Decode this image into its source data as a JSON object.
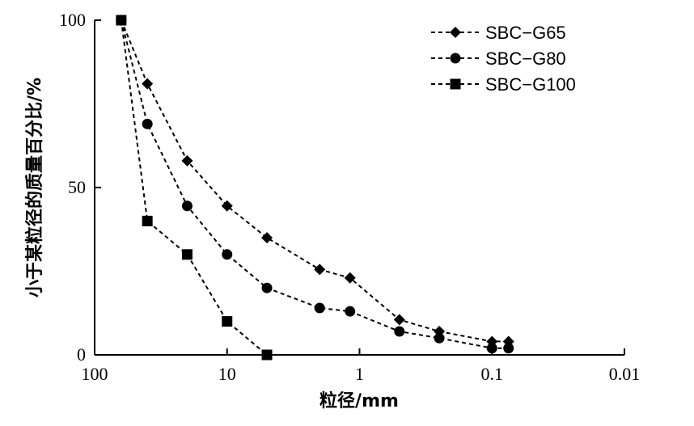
{
  "chart_data": {
    "type": "line",
    "x_scale": "log",
    "x_reversed": true,
    "xlabel": "粒径/mm",
    "ylabel": "小于某粒径的质量百分比/%",
    "xlim": [
      100,
      0.01
    ],
    "ylim": [
      0,
      100
    ],
    "x_ticks": [
      100,
      10,
      1,
      0.1,
      0.01
    ],
    "x_tick_labels": [
      "100",
      "10",
      "1",
      "0.1",
      "0.01"
    ],
    "y_ticks": [
      0,
      50,
      100
    ],
    "y_tick_labels": [
      "0",
      "50",
      "100"
    ],
    "legend_position": "top-right",
    "grid": false,
    "series": [
      {
        "name": "SBC−G65",
        "marker": "diamond",
        "color": "#000000",
        "x": [
          63,
          40,
          20,
          10,
          5,
          2,
          1.18,
          0.5,
          0.25,
          0.1,
          0.075
        ],
        "y": [
          100,
          81,
          58,
          44.5,
          35,
          25.5,
          23,
          10.5,
          7,
          4,
          4
        ]
      },
      {
        "name": "SBC−G80",
        "marker": "circle",
        "color": "#000000",
        "x": [
          63,
          40,
          20,
          10,
          5,
          2,
          1.18,
          0.5,
          0.25,
          0.1,
          0.075
        ],
        "y": [
          100,
          69,
          44.5,
          30,
          20,
          14,
          13,
          7,
          5,
          2,
          2
        ]
      },
      {
        "name": "SBC−G100",
        "marker": "square",
        "color": "#000000",
        "x": [
          63,
          40,
          20,
          10,
          5
        ],
        "y": [
          100,
          40,
          30,
          10,
          0
        ]
      }
    ]
  }
}
